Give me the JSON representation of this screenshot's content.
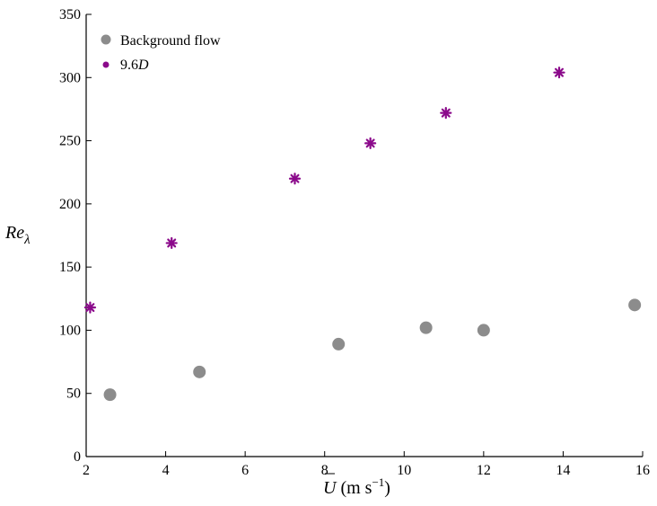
{
  "chart_data": {
    "type": "scatter",
    "xlim": [
      2,
      16
    ],
    "ylim": [
      0,
      350
    ],
    "x_ticks": [
      2,
      4,
      6,
      8,
      10,
      12,
      14,
      16
    ],
    "y_ticks": [
      0,
      50,
      100,
      150,
      200,
      250,
      300,
      350
    ],
    "xlabel": {
      "symbol": "U",
      "unit_prefix": " (m s",
      "unit_exp": "−1",
      "unit_suffix": ")"
    },
    "ylabel": {
      "main": "Re",
      "sub": "λ"
    },
    "grid": false,
    "legend_position": "top-left",
    "series": [
      {
        "name": "Background flow",
        "marker": "circle",
        "color": "#8c8c8c",
        "points": [
          {
            "x": 2.6,
            "y": 49
          },
          {
            "x": 4.85,
            "y": 67
          },
          {
            "x": 8.35,
            "y": 89
          },
          {
            "x": 10.55,
            "y": 102
          },
          {
            "x": 12.0,
            "y": 100
          },
          {
            "x": 15.8,
            "y": 120
          }
        ]
      },
      {
        "name": "9.6D",
        "name_parts": {
          "num": "9.6",
          "ital": "D"
        },
        "marker": "asterisk",
        "color": "#8b0a8b",
        "points": [
          {
            "x": 2.1,
            "y": 118
          },
          {
            "x": 4.15,
            "y": 169
          },
          {
            "x": 7.25,
            "y": 220
          },
          {
            "x": 9.15,
            "y": 248
          },
          {
            "x": 11.05,
            "y": 272
          },
          {
            "x": 13.9,
            "y": 304
          }
        ]
      }
    ]
  }
}
